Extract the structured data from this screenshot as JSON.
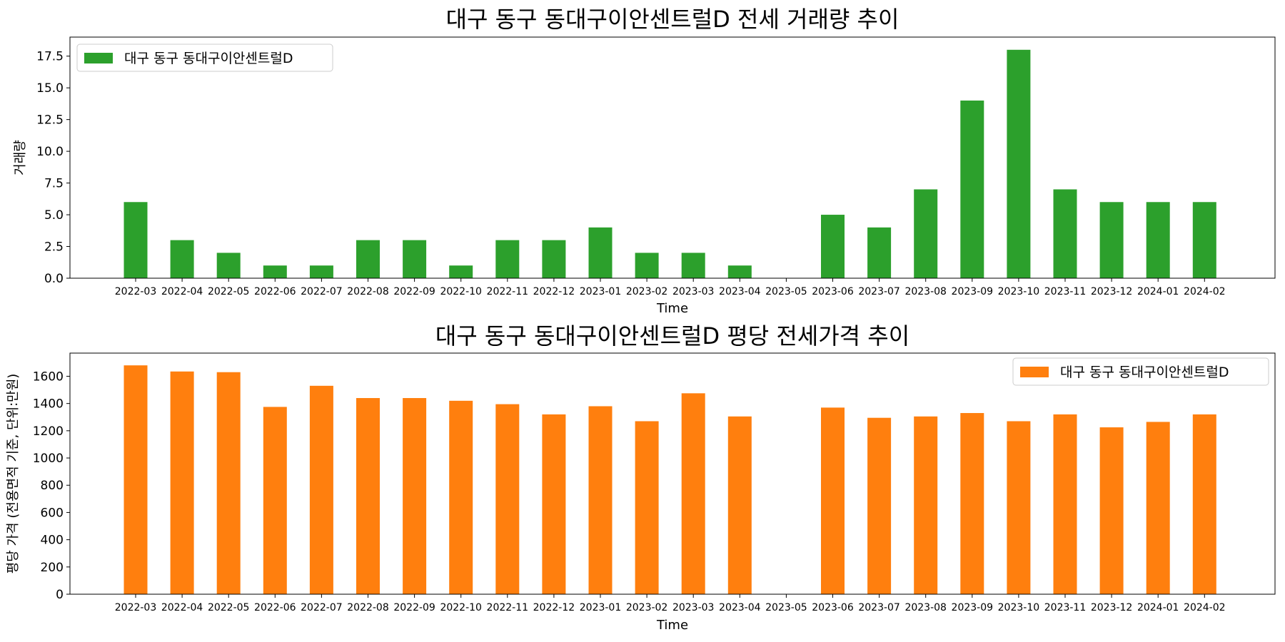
{
  "chart_data": [
    {
      "type": "bar",
      "title": "대구 동구 동대구이안센트럴D 전세 거래량 추이",
      "xlabel": "Time",
      "ylabel": "거래량",
      "ylim": [
        0,
        19
      ],
      "yticks": [
        "0.0",
        "2.5",
        "5.0",
        "7.5",
        "10.0",
        "12.5",
        "15.0",
        "17.5"
      ],
      "categories": [
        "2022-03",
        "2022-04",
        "2022-05",
        "2022-06",
        "2022-07",
        "2022-08",
        "2022-09",
        "2022-10",
        "2022-11",
        "2022-12",
        "2023-01",
        "2023-02",
        "2023-03",
        "2023-04",
        "2023-05",
        "2023-06",
        "2023-07",
        "2023-08",
        "2023-09",
        "2023-10",
        "2023-11",
        "2023-12",
        "2024-01",
        "2024-02"
      ],
      "series": [
        {
          "name": "대구 동구 동대구이안센트럴D",
          "color": "#2ca02c",
          "values": [
            6,
            3,
            2,
            1,
            1,
            3,
            3,
            1,
            3,
            3,
            4,
            2,
            2,
            1,
            0,
            5,
            4,
            7,
            14,
            18,
            7,
            6,
            6,
            6
          ]
        }
      ],
      "legend": "upper-left",
      "grid": false
    },
    {
      "type": "bar",
      "title": "대구 동구 동대구이안센트럴D 평당 전세가격 추이",
      "xlabel": "Time",
      "ylabel": "평당 가격 (전용면적 기준, 단위:만원)",
      "ylim": [
        0,
        1770
      ],
      "yticks": [
        "0",
        "200",
        "400",
        "600",
        "800",
        "1000",
        "1200",
        "1400",
        "1600"
      ],
      "categories": [
        "2022-03",
        "2022-04",
        "2022-05",
        "2022-06",
        "2022-07",
        "2022-08",
        "2022-09",
        "2022-10",
        "2022-11",
        "2022-12",
        "2023-01",
        "2023-02",
        "2023-03",
        "2023-04",
        "2023-05",
        "2023-06",
        "2023-07",
        "2023-08",
        "2023-09",
        "2023-10",
        "2023-11",
        "2023-12",
        "2024-01",
        "2024-02"
      ],
      "series": [
        {
          "name": "대구 동구 동대구이안센트럴D",
          "color": "#ff7f0e",
          "values": [
            1680,
            1635,
            1630,
            1375,
            1530,
            1440,
            1440,
            1420,
            1395,
            1320,
            1380,
            1270,
            1475,
            1305,
            null,
            1370,
            1295,
            1305,
            1330,
            1270,
            1320,
            1225,
            1265,
            1320
          ]
        }
      ],
      "legend": "upper-right",
      "grid": false
    }
  ]
}
